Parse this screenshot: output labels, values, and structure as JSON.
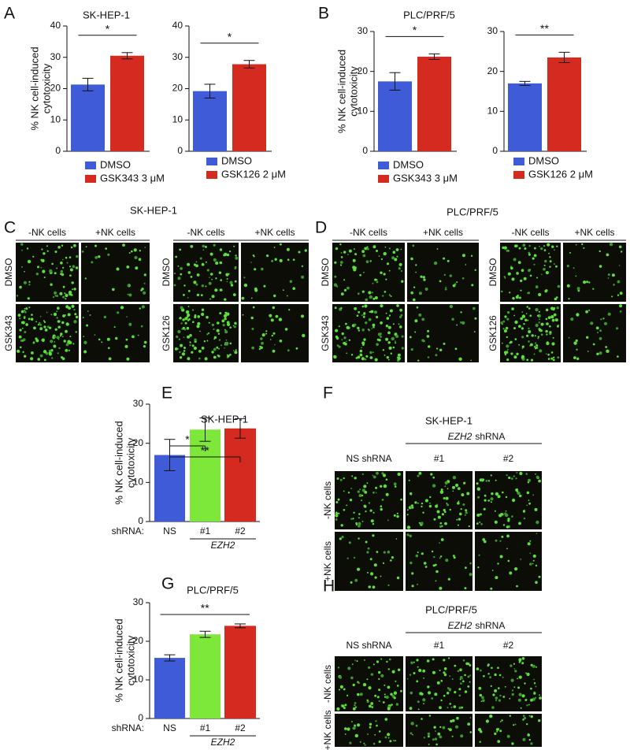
{
  "chart_data": [
    {
      "type": "bar",
      "panel": "A",
      "title": "SK-HEP-1",
      "ylabel": [
        "% NK cell-induced",
        "cytotoxicity"
      ],
      "ylim": [
        0,
        40
      ],
      "yticks": [
        0,
        10,
        20,
        30,
        40
      ],
      "series": [
        {
          "name": "DMSO",
          "color": "#3f5bd8",
          "values": [
            21.3
          ],
          "errors": [
            2
          ]
        },
        {
          "name": "GSK343 3 μM",
          "color": "#d42a20",
          "values": [
            30.5
          ],
          "errors": [
            1
          ]
        }
      ],
      "annotations": [
        {
          "text": "*",
          "from": 0,
          "to": 1
        }
      ]
    },
    {
      "type": "bar",
      "ylim": [
        0,
        40
      ],
      "yticks": [
        0,
        10,
        20,
        30,
        40
      ],
      "series": [
        {
          "name": "DMSO",
          "color": "#3f5bd8",
          "values": [
            19.2
          ],
          "errors": [
            2.2
          ]
        },
        {
          "name": "GSK126 2 μM",
          "color": "#d42a20",
          "values": [
            27.8
          ],
          "errors": [
            1.2
          ]
        }
      ],
      "annotations": [
        {
          "text": "*",
          "from": 0,
          "to": 1
        }
      ]
    },
    {
      "type": "bar",
      "panel": "B",
      "title": "PLC/PRF/5",
      "ylabel": [
        "% NK cell-induced",
        "cytotoxicity"
      ],
      "ylim": [
        0,
        30
      ],
      "yticks": [
        0,
        10,
        20,
        30
      ],
      "series": [
        {
          "name": "DMSO",
          "color": "#3f5bd8",
          "values": [
            17.5
          ],
          "errors": [
            2.2
          ]
        },
        {
          "name": "GSK343 3 μM",
          "color": "#d42a20",
          "values": [
            23.7
          ],
          "errors": [
            0.7
          ]
        }
      ],
      "annotations": [
        {
          "text": "*",
          "from": 0,
          "to": 1
        }
      ]
    },
    {
      "type": "bar",
      "ylim": [
        0,
        30
      ],
      "yticks": [
        0,
        10,
        20,
        30
      ],
      "series": [
        {
          "name": "DMSO",
          "color": "#3f5bd8",
          "values": [
            17
          ],
          "errors": [
            0.5
          ]
        },
        {
          "name": "GSK126 2 μM",
          "color": "#d42a20",
          "values": [
            23.5
          ],
          "errors": [
            1.3
          ]
        }
      ],
      "annotations": [
        {
          "text": "**",
          "from": 0,
          "to": 1
        }
      ]
    },
    {
      "type": "catbar",
      "panel": "E",
      "title": "SK-HEP-1",
      "ylabel": [
        "% NK cell-induced",
        "cytotoxicity"
      ],
      "ylim": [
        0,
        30
      ],
      "yticks": [
        0,
        10,
        20,
        30
      ],
      "x_prefix": "shRNA:",
      "group_label": "EZH2",
      "categories": [
        "NS",
        "#1",
        "#2"
      ],
      "values": [
        17,
        23.5,
        23.8
      ],
      "errors": [
        4,
        3,
        2.5
      ],
      "colors": [
        "#3f5bd8",
        "#7ee83a",
        "#d42a20"
      ],
      "annotations": [
        {
          "text": "*",
          "from": 0,
          "to": 1
        },
        {
          "text": "**",
          "from": 0,
          "to": 2
        }
      ]
    },
    {
      "type": "catbar",
      "panel": "G",
      "title": "PLC/PRF/5",
      "ylabel": [
        "% NK cell-induced",
        "cytotoxicity"
      ],
      "ylim": [
        0,
        30
      ],
      "yticks": [
        0,
        10,
        20,
        30
      ],
      "x_prefix": "shRNA:",
      "group_label": "EZH2",
      "categories": [
        "NS",
        "#1",
        "#2"
      ],
      "values": [
        15.7,
        21.8,
        24
      ],
      "errors": [
        0.8,
        0.8,
        0.5
      ],
      "colors": [
        "#3f5bd8",
        "#7ee83a",
        "#d42a20"
      ],
      "annotations": [
        {
          "text": "**",
          "from": 0,
          "to": 2
        }
      ]
    }
  ],
  "images": [
    {
      "panel": "C",
      "title": "SK-HEP-1",
      "groups": [
        {
          "columns": [
            "-NK cells",
            "+NK cells"
          ],
          "rows": [
            "DMSO",
            "GSK343"
          ]
        },
        {
          "columns": [
            "-NK cells",
            "+NK cells"
          ],
          "rows": [
            "DMSO",
            "GSK126"
          ]
        }
      ]
    },
    {
      "panel": "D",
      "title": "PLC/PRF/5",
      "groups": [
        {
          "columns": [
            "-NK cells",
            "+NK cells"
          ],
          "rows": [
            "DMSO",
            "GSK343"
          ]
        },
        {
          "columns": [
            "-NK cells",
            "+NK cells"
          ],
          "rows": [
            "DMSO",
            "GSK126"
          ]
        }
      ]
    },
    {
      "panel": "F",
      "title": "SK-HEP-1",
      "header": [
        "EZH2",
        "shRNA"
      ],
      "groups": [
        {
          "columns": [
            "NS shRNA",
            "#1",
            "#2"
          ],
          "rows": [
            "-NK cells",
            "+NK cells"
          ]
        }
      ]
    },
    {
      "panel": "H",
      "title": "PLC/PRF/5",
      "header": [
        "EZH2",
        "shRNA"
      ],
      "groups": [
        {
          "columns": [
            "NS shRNA",
            "#1",
            "#2"
          ],
          "rows": [
            "-NK cells",
            "+NK cells"
          ]
        }
      ]
    }
  ]
}
